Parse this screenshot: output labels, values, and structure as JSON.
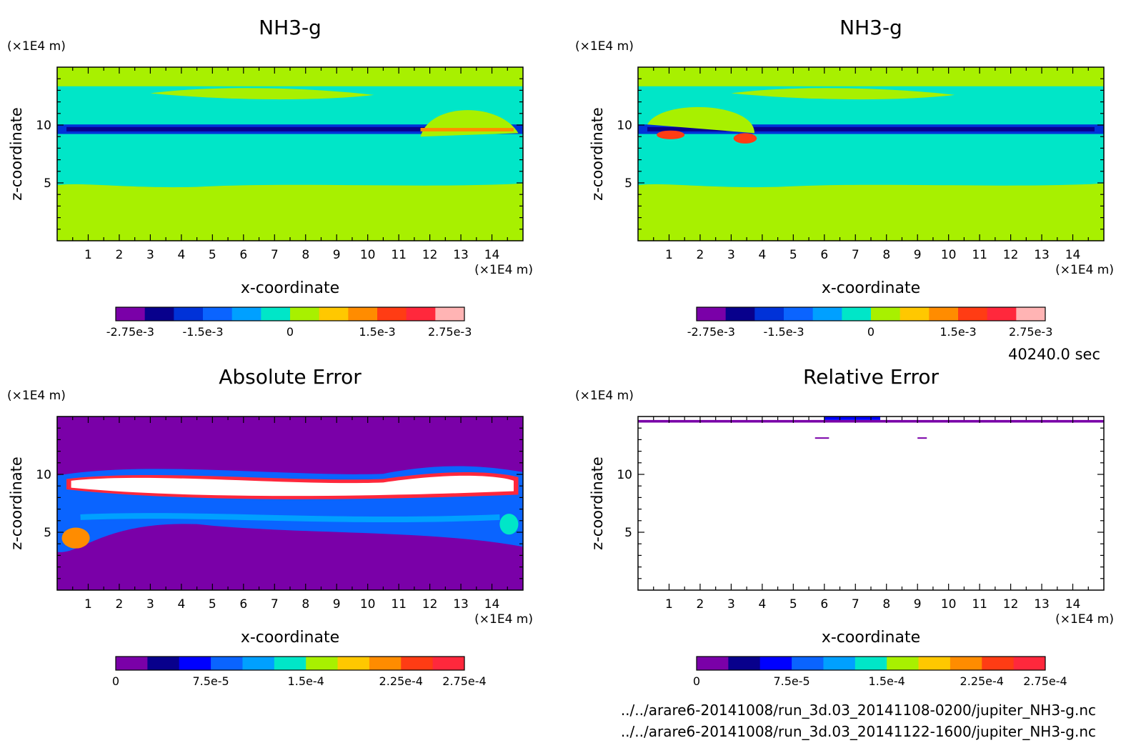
{
  "figure": {
    "timestamp": "40240.0 sec",
    "files": [
      "../../arare6-20141008/run_3d.03_20141108-0200/jupiter_NH3-g.nc",
      "../../arare6-20141008/run_3d.03_20141122-1600/jupiter_NH3-g.nc"
    ]
  },
  "chart_data": [
    {
      "type": "heatmap",
      "title": "NH3-g",
      "xlabel": "x-coordinate",
      "ylabel": "z-coordinate",
      "x_unit": "(×1E4 m)",
      "y_unit": "(×1E4 m)",
      "xlim": [
        0,
        15
      ],
      "ylim": [
        0,
        15
      ],
      "xticks": [
        1,
        2,
        3,
        4,
        5,
        6,
        7,
        8,
        9,
        10,
        11,
        12,
        13,
        14
      ],
      "yticks": [
        5,
        10
      ],
      "colorbar": {
        "colors": [
          "#7a00a8",
          "#08008c",
          "#0032d8",
          "#0a64ff",
          "#00a0ff",
          "#00e6c8",
          "#a8f000",
          "#ffc800",
          "#ff8c00",
          "#ff3c14",
          "#ff283c",
          "#ffb4b4"
        ],
        "tick_labels": [
          "-2.75e-3",
          "-1.5e-3",
          "0",
          "1.5e-3",
          "2.75e-3"
        ],
        "tick_values": [
          -0.00275,
          -0.0015,
          0,
          0.0015,
          0.00275
        ],
        "range": [
          -0.003,
          0.003
        ]
      }
    },
    {
      "type": "heatmap",
      "title": "NH3-g",
      "xlabel": "x-coordinate",
      "ylabel": "z-coordinate",
      "x_unit": "(×1E4 m)",
      "y_unit": "(×1E4 m)",
      "xlim": [
        0,
        15
      ],
      "ylim": [
        0,
        15
      ],
      "xticks": [
        1,
        2,
        3,
        4,
        5,
        6,
        7,
        8,
        9,
        10,
        11,
        12,
        13,
        14
      ],
      "yticks": [
        5,
        10
      ],
      "colorbar": {
        "colors": [
          "#7a00a8",
          "#08008c",
          "#0032d8",
          "#0a64ff",
          "#00a0ff",
          "#00e6c8",
          "#a8f000",
          "#ffc800",
          "#ff8c00",
          "#ff3c14",
          "#ff283c",
          "#ffb4b4"
        ],
        "tick_labels": [
          "-2.75e-3",
          "-1.5e-3",
          "0",
          "1.5e-3",
          "2.75e-3"
        ],
        "tick_values": [
          -0.00275,
          -0.0015,
          0,
          0.0015,
          0.00275
        ],
        "range": [
          -0.003,
          0.003
        ]
      }
    },
    {
      "type": "heatmap",
      "title": "Absolute Error",
      "xlabel": "x-coordinate",
      "ylabel": "z-coordinate",
      "x_unit": "(×1E4 m)",
      "y_unit": "(×1E4 m)",
      "xlim": [
        0,
        15
      ],
      "ylim": [
        0,
        15
      ],
      "xticks": [
        1,
        2,
        3,
        4,
        5,
        6,
        7,
        8,
        9,
        10,
        11,
        12,
        13,
        14
      ],
      "yticks": [
        5,
        10
      ],
      "colorbar": {
        "colors": [
          "#7a00a8",
          "#08008c",
          "#0000ff",
          "#0a64ff",
          "#00a0ff",
          "#00e6c8",
          "#a8f000",
          "#ffc800",
          "#ff8c00",
          "#ff3c14",
          "#ff283c"
        ],
        "tick_labels": [
          "0",
          "7.5e-5",
          "1.5e-4",
          "2.25e-4",
          "2.75e-4"
        ],
        "tick_values": [
          0,
          7.5e-05,
          0.00015,
          0.000225,
          0.000275
        ],
        "range": [
          0,
          0.000275
        ]
      }
    },
    {
      "type": "heatmap",
      "title": "Relative Error",
      "xlabel": "x-coordinate",
      "ylabel": "z-coordinate",
      "x_unit": "(×1E4 m)",
      "y_unit": "(×1E4 m)",
      "xlim": [
        0,
        15
      ],
      "ylim": [
        0,
        15
      ],
      "xticks": [
        1,
        2,
        3,
        4,
        5,
        6,
        7,
        8,
        9,
        10,
        11,
        12,
        13,
        14
      ],
      "yticks": [
        5,
        10
      ],
      "colorbar": {
        "colors": [
          "#7a00a8",
          "#08008c",
          "#0000ff",
          "#0a64ff",
          "#00a0ff",
          "#00e6c8",
          "#a8f000",
          "#ffc800",
          "#ff8c00",
          "#ff3c14",
          "#ff283c"
        ],
        "tick_labels": [
          "0",
          "7.5e-5",
          "1.5e-4",
          "2.25e-4",
          "2.75e-4"
        ],
        "tick_values": [
          0,
          7.5e-05,
          0.00015,
          0.000225,
          0.000275
        ],
        "range": [
          0,
          0.000275
        ]
      }
    }
  ]
}
